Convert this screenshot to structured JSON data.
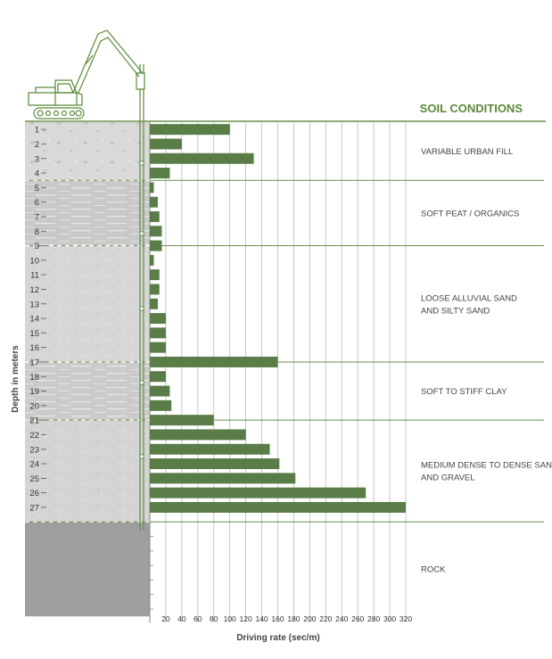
{
  "chart_data": {
    "type": "bar",
    "orientation": "horizontal",
    "title": "SOIL CONDITIONS",
    "xlabel": "Driving rate (sec/m)",
    "ylabel": "Depth in meters",
    "xlim": [
      0,
      320
    ],
    "x_ticks": [
      20,
      40,
      60,
      80,
      100,
      120,
      140,
      160,
      180,
      200,
      220,
      240,
      260,
      280,
      300,
      320
    ],
    "depths": [
      1,
      2,
      3,
      4,
      5,
      6,
      7,
      8,
      9,
      10,
      11,
      12,
      13,
      14,
      15,
      16,
      17,
      18,
      19,
      20,
      21,
      22,
      23,
      24,
      25,
      26,
      27
    ],
    "values": [
      100,
      40,
      130,
      25,
      5,
      10,
      12,
      15,
      15,
      5,
      12,
      12,
      10,
      20,
      20,
      20,
      160,
      20,
      25,
      27,
      80,
      120,
      150,
      162,
      182,
      270,
      320
    ],
    "grid": true,
    "layers": [
      {
        "name": "VARIABLE URBAN FILL",
        "from": 0,
        "to": 4
      },
      {
        "name": "SOFT PEAT / ORGANICS",
        "from": 4,
        "to": 8.5
      },
      {
        "name": "LOOSE ALLUVIAL SAND AND SILTY SAND",
        "from": 8.5,
        "to": 16.5
      },
      {
        "name": "SOFT TO STIFF CLAY",
        "from": 16.5,
        "to": 20.5
      },
      {
        "name": "MEDIUM DENSE TO DENSE SAND AND GRAVEL",
        "from": 20.5,
        "to": 27.5
      },
      {
        "name": "ROCK",
        "from": 27.5,
        "to": 34
      }
    ],
    "colors": {
      "bar": "#5a7d47",
      "accent": "#5b8a3a",
      "line": "#6b8e4e",
      "grid": "#b9b9b9",
      "text": "#444444"
    }
  }
}
